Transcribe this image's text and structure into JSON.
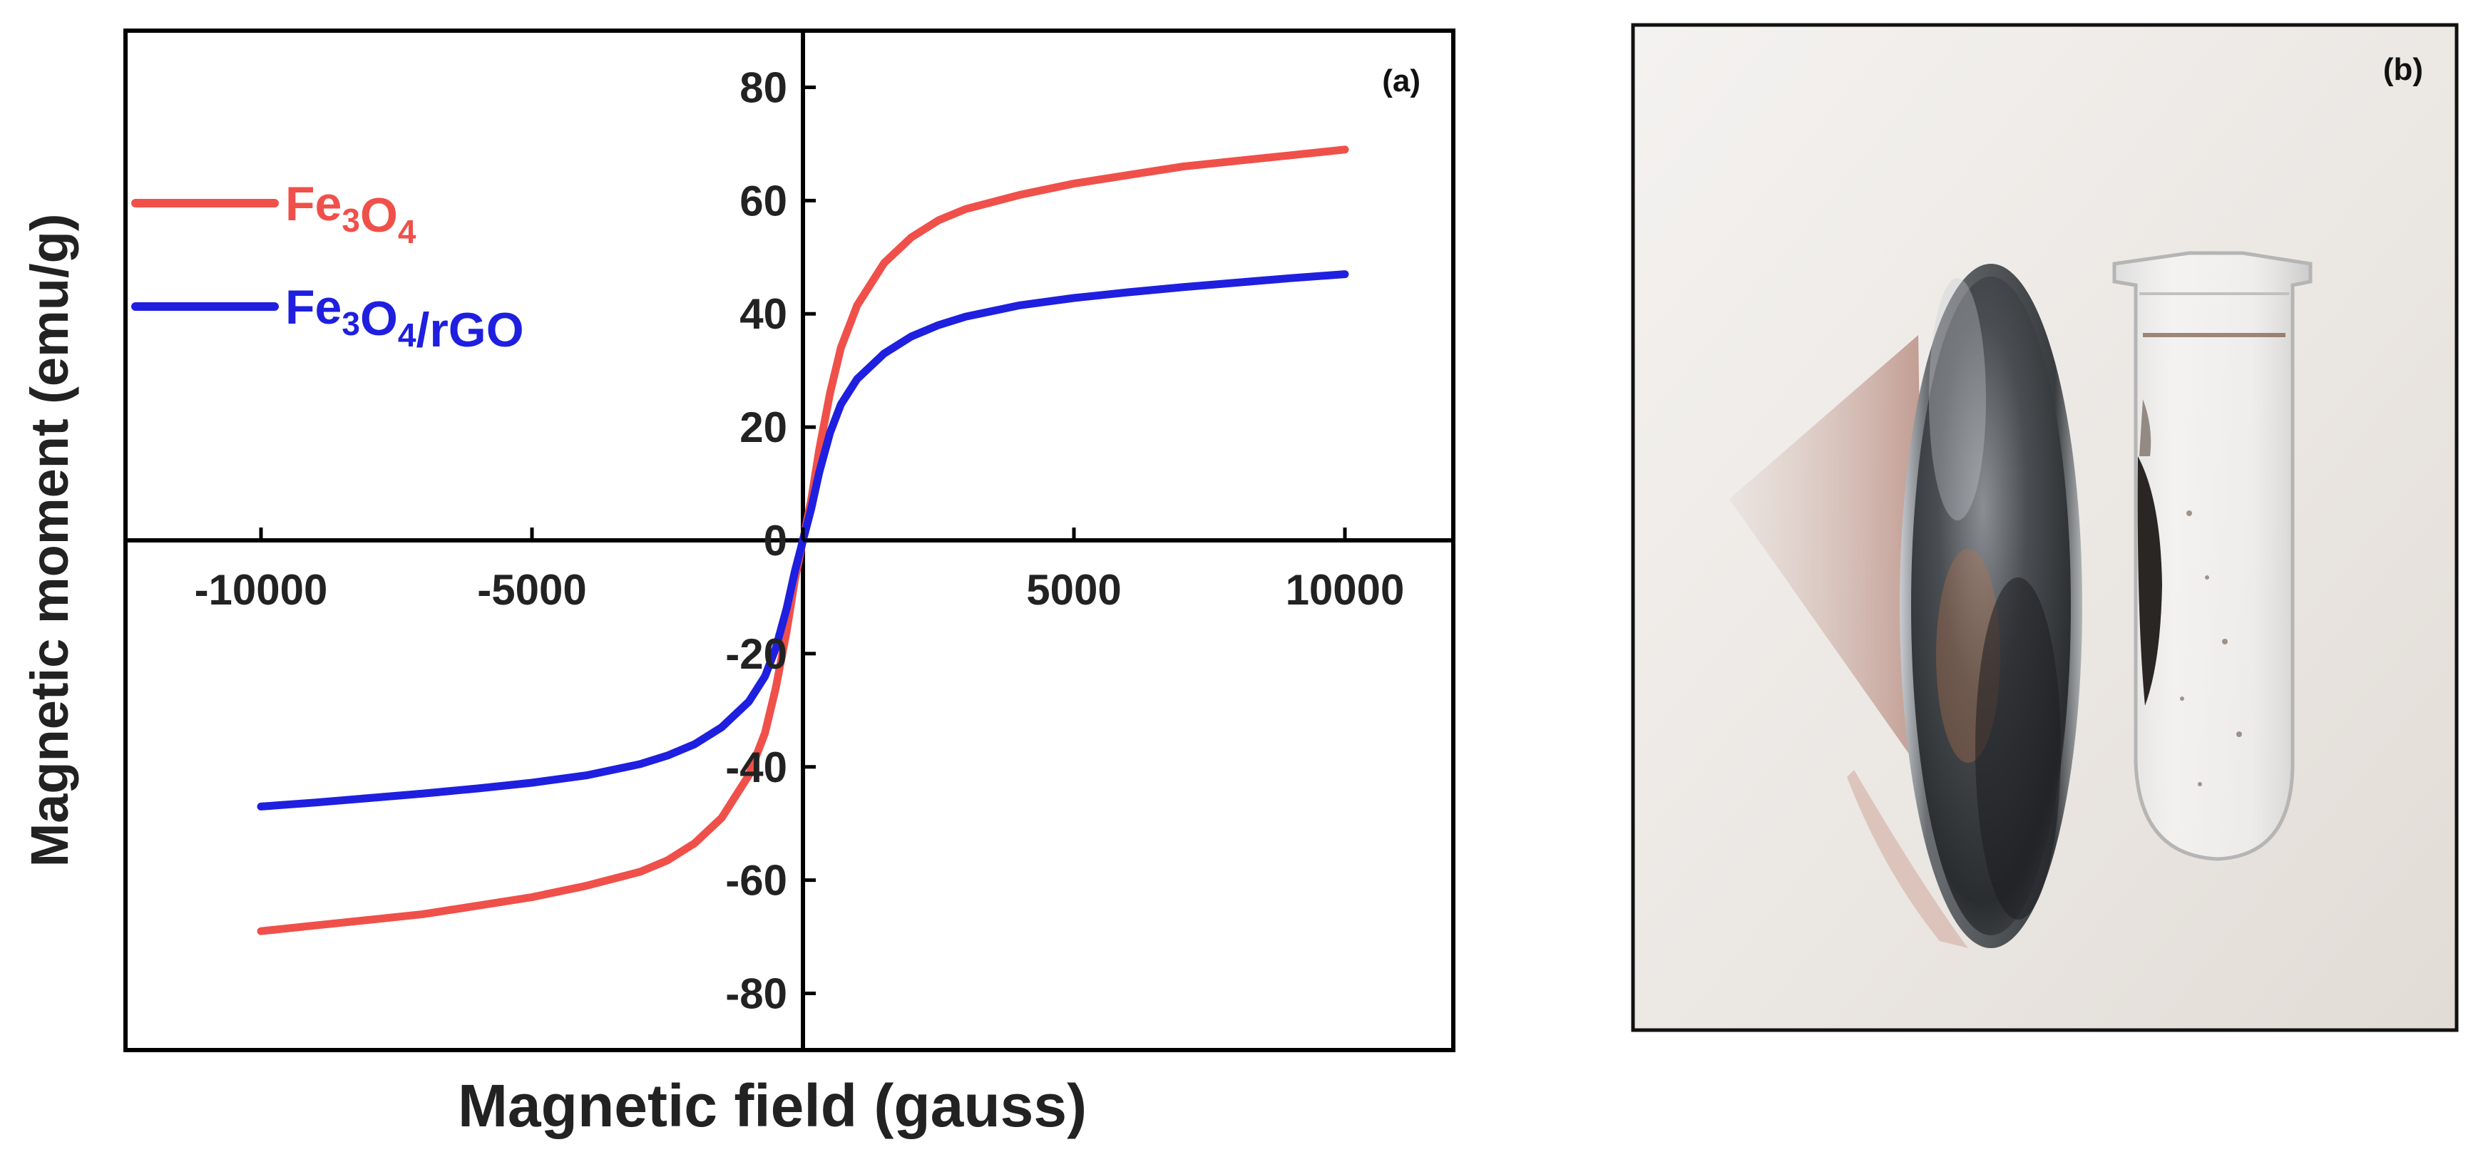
{
  "colors": {
    "fe3o4": "#f0504a",
    "fe3o4_rgo": "#1f1fe0",
    "axis": "#000000",
    "photo_background": "#eeebe8",
    "magnet": "#3a3d40",
    "shadow": "#c9a29a"
  },
  "chart_data": {
    "type": "line",
    "panel_label": "(a)",
    "xlabel": "Magnetic field (gauss)",
    "ylabel": "Magnetic moment (emu/g)",
    "xlim": [
      -12500,
      12000
    ],
    "ylim": [
      -90,
      90
    ],
    "xticks": [
      -10000,
      -5000,
      0,
      5000,
      10000
    ],
    "xtick_labels": [
      "-10000",
      "-5000",
      "0",
      "5000",
      "10000"
    ],
    "yticks": [
      -80,
      -60,
      -40,
      -20,
      0,
      20,
      40,
      60,
      80
    ],
    "ytick_labels": [
      "-80",
      "-60",
      "-40",
      "-20",
      "0",
      "20",
      "40",
      "60",
      "80"
    ],
    "grid": false,
    "legend_position": "upper-left",
    "series": [
      {
        "name_parts": [
          {
            "text": "Fe",
            "sub": false
          },
          {
            "text": "3",
            "sub": true
          },
          {
            "text": "O",
            "sub": false
          },
          {
            "text": "4",
            "sub": true
          }
        ],
        "color_key": "fe3o4",
        "x": [
          -10000,
          -9000,
          -8000,
          -7000,
          -6000,
          -5000,
          -4000,
          -3000,
          -2500,
          -2000,
          -1500,
          -1000,
          -700,
          -500,
          -300,
          -150,
          0,
          150,
          300,
          500,
          700,
          1000,
          1500,
          2000,
          2500,
          3000,
          4000,
          5000,
          6000,
          7000,
          8000,
          9000,
          10000
        ],
        "y": [
          -69,
          -68,
          -67,
          -66,
          -64.5,
          -63,
          -61,
          -58.5,
          -56.5,
          -53.5,
          -49,
          -41.5,
          -34,
          -26,
          -16,
          -7,
          0,
          7,
          16,
          26,
          34,
          41.5,
          49,
          53.5,
          56.5,
          58.5,
          61,
          63,
          64.5,
          66,
          67,
          68,
          69
        ]
      },
      {
        "name_parts": [
          {
            "text": "Fe",
            "sub": false
          },
          {
            "text": "3",
            "sub": true
          },
          {
            "text": "O",
            "sub": false
          },
          {
            "text": "4",
            "sub": true
          },
          {
            "text": "/rGO",
            "sub": false
          }
        ],
        "color_key": "fe3o4_rgo",
        "x": [
          -10000,
          -9000,
          -8000,
          -7000,
          -6000,
          -5000,
          -4000,
          -3000,
          -2500,
          -2000,
          -1500,
          -1000,
          -700,
          -500,
          -300,
          -150,
          0,
          150,
          300,
          500,
          700,
          1000,
          1500,
          2000,
          2500,
          3000,
          4000,
          5000,
          6000,
          7000,
          8000,
          9000,
          10000
        ],
        "y": [
          -47,
          -46.3,
          -45.5,
          -44.7,
          -43.8,
          -42.8,
          -41.5,
          -39.5,
          -38,
          -36,
          -33,
          -28.5,
          -24,
          -19,
          -12,
          -5.5,
          0,
          5.5,
          12,
          19,
          24,
          28.5,
          33,
          36,
          38,
          39.5,
          41.5,
          42.8,
          43.8,
          44.7,
          45.5,
          46.3,
          47
        ]
      }
    ]
  },
  "photo": {
    "panel_label": "(b)"
  }
}
